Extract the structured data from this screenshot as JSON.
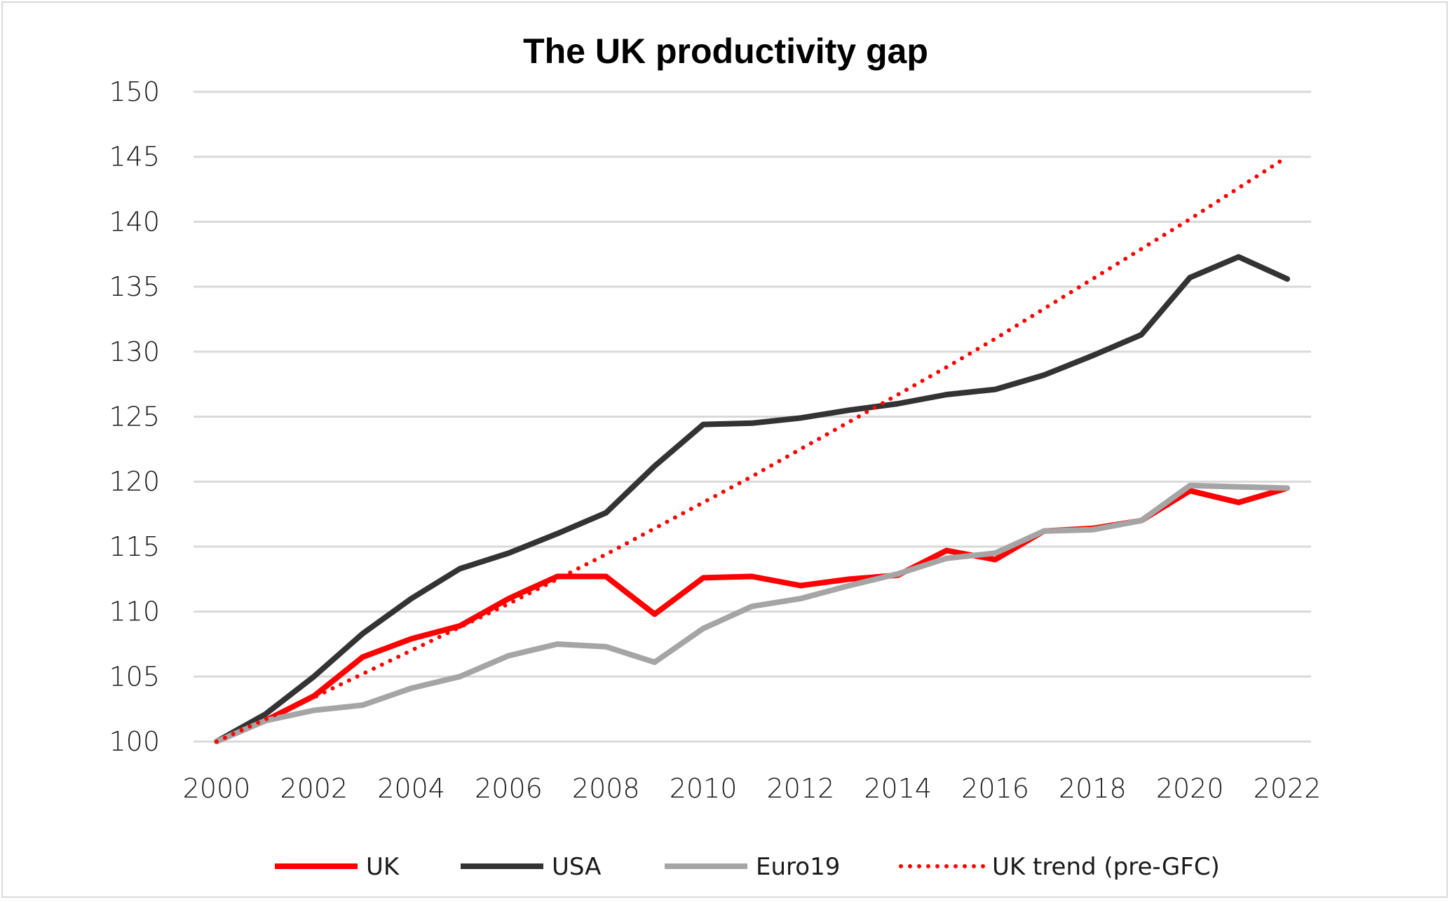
{
  "chart_data": {
    "type": "line",
    "title": "The UK productivity gap",
    "xlabel": "",
    "ylabel": "",
    "x": [
      2000,
      2001,
      2002,
      2003,
      2004,
      2005,
      2006,
      2007,
      2008,
      2009,
      2010,
      2011,
      2012,
      2013,
      2014,
      2015,
      2016,
      2017,
      2018,
      2019,
      2020,
      2021,
      2022
    ],
    "x_tick_labels": [
      "2000",
      "2002",
      "2004",
      "2006",
      "2008",
      "2010",
      "2012",
      "2014",
      "2016",
      "2018",
      "2020",
      "2022"
    ],
    "y_tick_labels": [
      "100",
      "105",
      "110",
      "115",
      "120",
      "125",
      "130",
      "135",
      "140",
      "145",
      "150"
    ],
    "ylim": [
      100,
      150
    ],
    "xlim": [
      2000,
      2022
    ],
    "grid": "horizontal",
    "legend_position": "bottom",
    "series": [
      {
        "name": "UK",
        "color": "#ff0000",
        "style": "solid",
        "values": [
          100,
          101.6,
          103.5,
          106.5,
          107.9,
          108.9,
          111.0,
          112.7,
          112.7,
          109.8,
          112.6,
          112.7,
          112.0,
          112.5,
          112.8,
          114.7,
          114.0,
          116.2,
          116.4,
          117.0,
          119.3,
          118.4,
          119.5
        ]
      },
      {
        "name": "USA",
        "color": "#333333",
        "style": "solid",
        "values": [
          100,
          102.1,
          105.0,
          108.3,
          111.0,
          113.3,
          114.5,
          116.0,
          117.6,
          121.2,
          124.4,
          124.5,
          124.9,
          125.5,
          126.0,
          126.7,
          127.1,
          128.2,
          129.7,
          131.3,
          135.7,
          137.3,
          135.6
        ]
      },
      {
        "name": "Euro19",
        "color": "#a5a5a5",
        "style": "solid",
        "values": [
          100,
          101.6,
          102.4,
          102.8,
          104.1,
          105.0,
          106.6,
          107.5,
          107.3,
          106.1,
          108.7,
          110.4,
          111.0,
          112.0,
          112.9,
          114.1,
          114.5,
          116.2,
          116.3,
          117.0,
          119.7,
          119.6,
          119.5
        ]
      },
      {
        "name": "UK trend (pre-GFC)",
        "color": "#ff0000",
        "style": "dotted",
        "values": [
          100,
          101.7,
          103.4,
          105.2,
          107.0,
          108.8,
          110.6,
          112.5,
          114.4,
          116.4,
          118.4,
          120.4,
          122.5,
          124.6,
          126.7,
          128.8,
          131.0,
          133.3,
          135.6,
          137.9,
          140.2,
          142.6,
          145.0
        ]
      }
    ]
  }
}
